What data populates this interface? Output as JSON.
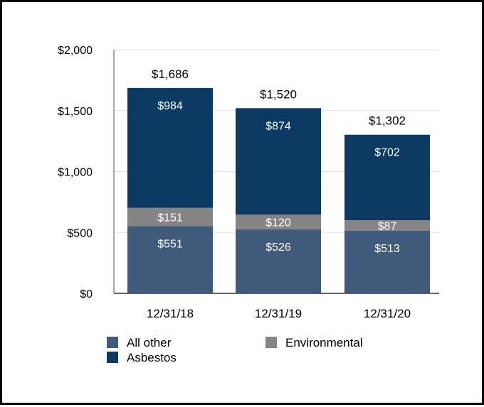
{
  "chart_data": {
    "type": "bar",
    "stacked": true,
    "categories": [
      "12/31/18",
      "12/31/19",
      "12/31/20"
    ],
    "series": [
      {
        "name": "All other",
        "values": [
          551,
          526,
          513
        ],
        "labels": [
          "$551",
          "$526",
          "$513"
        ],
        "color": "#3f5a7a"
      },
      {
        "name": "Environmental",
        "values": [
          151,
          120,
          87
        ],
        "labels": [
          "$151",
          "$120",
          "$87"
        ],
        "color": "#858585"
      },
      {
        "name": "Asbestos",
        "values": [
          984,
          874,
          702
        ],
        "labels": [
          "$984",
          "$874",
          "$702"
        ],
        "color": "#0c3a62"
      }
    ],
    "totals": [
      1686,
      1520,
      1302
    ],
    "total_labels": [
      "$1,686",
      "$1,520",
      "$1,302"
    ],
    "ylim": [
      0,
      2000
    ],
    "yticks": [
      0,
      500,
      1000,
      1500,
      2000
    ],
    "ytick_labels": [
      "$0",
      "$500",
      "$1,000",
      "$1,500",
      "$2,000"
    ],
    "gridlines": true,
    "legend": {
      "position": "bottom",
      "entries": [
        "All other",
        "Environmental",
        "Asbestos"
      ]
    },
    "title": "",
    "xlabel": "",
    "ylabel": ""
  }
}
